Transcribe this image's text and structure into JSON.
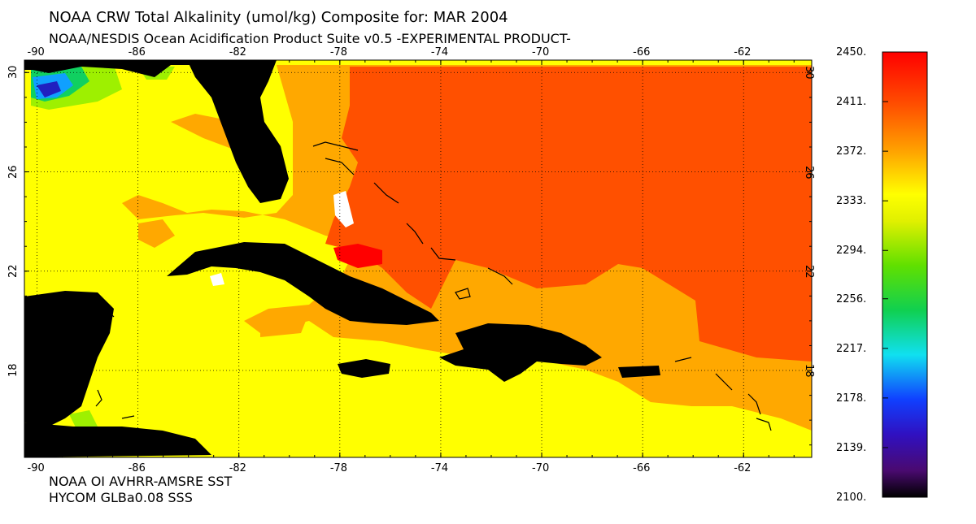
{
  "title": "NOAA CRW Total Alkalinity (umol/kg) Composite for: MAR 2004",
  "subtitle": "NOAA/NESDIS Ocean Acidification Product Suite  v0.5 -EXPERIMENTAL PRODUCT-",
  "footer": {
    "line1": "NOAA OI AVHRR-AMSRE SST",
    "line2": "HYCOM GLBa0.08 SSS"
  },
  "map": {
    "lon_ticks": [
      "-90",
      "-86",
      "-82",
      "-78",
      "-74",
      "-70",
      "-66",
      "-62"
    ],
    "lat_ticks": [
      "30",
      "26",
      "22",
      "18"
    ],
    "lon_range": [
      -90.5,
      -59.3
    ],
    "lat_range": [
      14.5,
      30.5
    ],
    "land_color": "#000000",
    "grid": "dotted"
  },
  "colorbar": {
    "labels": [
      "2450.",
      "2411.",
      "2372.",
      "2333.",
      "2294.",
      "2256.",
      "2217.",
      "2178.",
      "2139.",
      "2100."
    ],
    "range": [
      2100,
      2450
    ],
    "colors": [
      "#000000",
      "#6a0a8f",
      "#2a10c8",
      "#0a5aff",
      "#18e8f0",
      "#10d060",
      "#40e000",
      "#c0f000",
      "#ffff00",
      "#ffa800",
      "#ff5000",
      "#ff0000"
    ]
  }
}
